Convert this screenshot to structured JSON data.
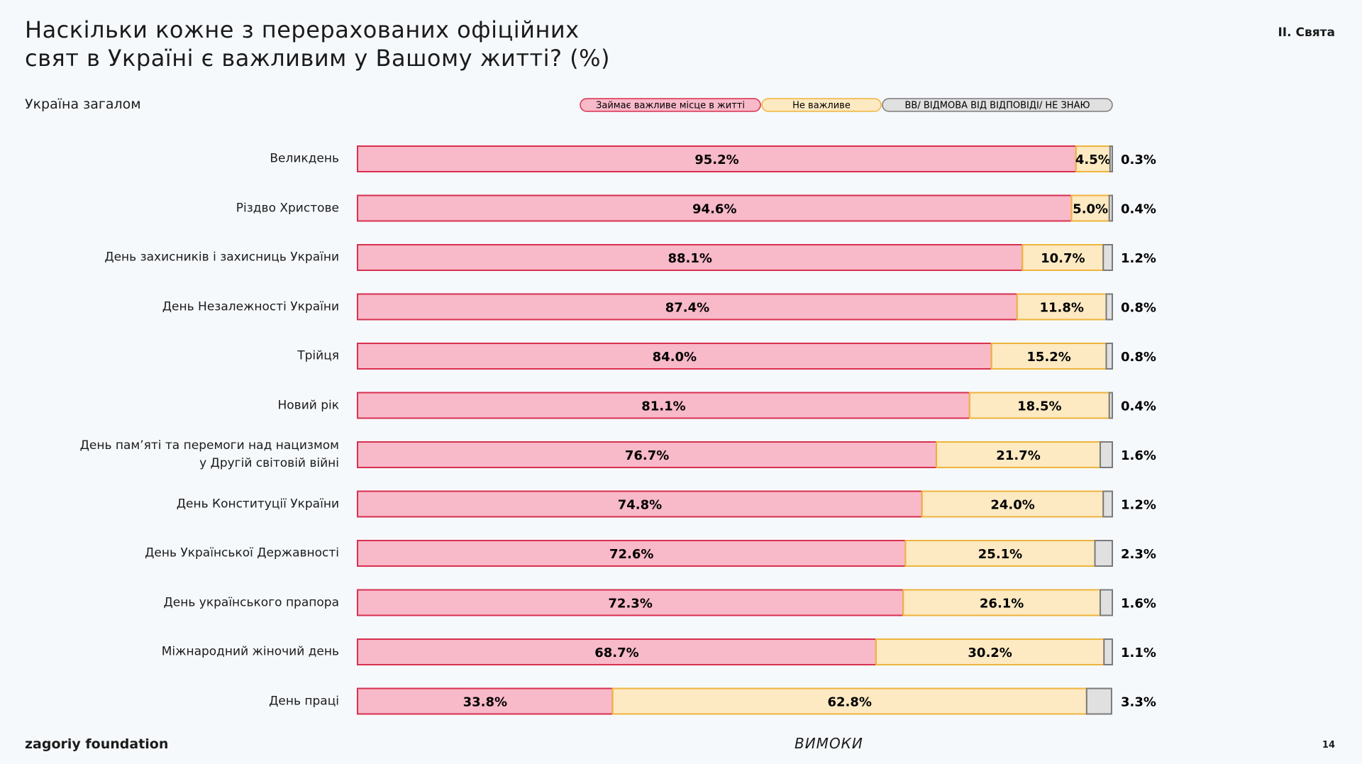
{
  "header": {
    "title": "Наскільки кожне з перерахованих офіційних\nсвят в Україні є важливим у Вашому житті? (%)",
    "section": "ІІ. Свята",
    "subtitle": "Україна загалом"
  },
  "chart_data": {
    "type": "stacked-bar-horizontal",
    "categories": [
      "Великдень",
      "Різдво Христове",
      "День захисників і захисниць України",
      "День Незалежності України",
      "Трійця",
      "Новий рік",
      "День пам’яті та перемоги над нацизмом\nу Другій світовій війні",
      "День Конституції України",
      "День Української Державності",
      "День українського прапора",
      "Міжнародний жіночий день",
      "День праці"
    ],
    "xlim": [
      0,
      100
    ],
    "series": [
      {
        "name": "Займає важливе місце в житті",
        "color": "#f8b9c9",
        "stroke": "#d8304f",
        "values": [
          95.2,
          94.6,
          88.1,
          87.4,
          84.0,
          81.1,
          76.7,
          74.8,
          72.6,
          72.3,
          68.7,
          33.8
        ],
        "value_labels": [
          "95.2%",
          "94.6%",
          "88.1%",
          "87.4%",
          "84.0%",
          "81.1%",
          "76.7%",
          "74.8%",
          "72.6%",
          "72.3%",
          "68.7%",
          "33.8%"
        ]
      },
      {
        "name": "Не важливе",
        "color": "#fde9c2",
        "stroke": "#eeb43c",
        "values": [
          4.5,
          5.0,
          10.7,
          11.8,
          15.2,
          18.5,
          21.7,
          24.0,
          25.1,
          26.1,
          30.2,
          62.8
        ],
        "value_labels": [
          "4.5%",
          "5.0%",
          "10.7%",
          "11.8%",
          "15.2%",
          "18.5%",
          "21.7%",
          "24.0%",
          "25.1%",
          "26.1%",
          "30.2%",
          "62.8%"
        ]
      },
      {
        "name": "ВВ/ ВІДМОВА ВІД ВІДПОВІДІ/ НЕ ЗНАЮ",
        "color": "#e0e0e0",
        "stroke": "#7a7a7a",
        "values": [
          0.3,
          0.4,
          1.2,
          0.8,
          0.8,
          0.4,
          1.6,
          1.2,
          2.3,
          1.6,
          1.1,
          3.3
        ],
        "value_labels": [
          "0.3%",
          "0.4%",
          "1.2%",
          "0.8%",
          "0.8%",
          "0.4%",
          "1.6%",
          "1.2%",
          "2.3%",
          "1.6%",
          "1.1%",
          "3.3%"
        ]
      }
    ]
  },
  "footer": {
    "brand": "zagoriy foundation",
    "logo": "ВИМОКИ",
    "page": "14"
  }
}
